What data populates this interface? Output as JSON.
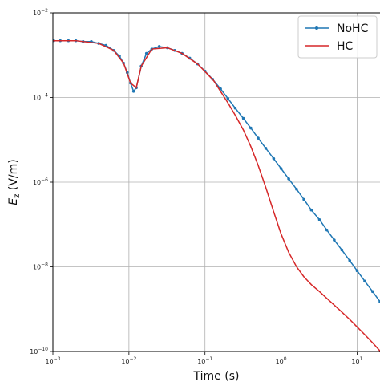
{
  "chart_data": {
    "type": "line",
    "title": "",
    "xlabel": "Time (s)",
    "ylabel": "E_z (V/m)",
    "xscale": "log",
    "yscale": "log",
    "xlim": [
      0.001,
      20
    ],
    "ylim": [
      1e-10,
      0.01
    ],
    "grid": true,
    "legend_position": "top-right",
    "x_ticks": [
      {
        "value": 0.001,
        "base": "10",
        "exp": "−3"
      },
      {
        "value": 0.01,
        "base": "10",
        "exp": "−2"
      },
      {
        "value": 0.1,
        "base": "10",
        "exp": "−1"
      },
      {
        "value": 1,
        "base": "10",
        "exp": "0"
      },
      {
        "value": 10,
        "base": "10",
        "exp": "1"
      }
    ],
    "y_ticks": [
      {
        "value": 1e-10,
        "base": "10",
        "exp": "−10"
      },
      {
        "value": 1e-08,
        "base": "10",
        "exp": "−8"
      },
      {
        "value": 1e-06,
        "base": "10",
        "exp": "−6"
      },
      {
        "value": 0.0001,
        "base": "10",
        "exp": "−4"
      },
      {
        "value": 0.01,
        "base": "10",
        "exp": "−2"
      }
    ],
    "series": [
      {
        "name": "NoHC",
        "color": "#1f77b4",
        "marker": "dot",
        "x": [
          0.001,
          0.00125,
          0.0016,
          0.002,
          0.0025,
          0.0032,
          0.004,
          0.005,
          0.0063,
          0.0075,
          0.0085,
          0.0095,
          0.0105,
          0.0115,
          0.0125,
          0.0145,
          0.017,
          0.02,
          0.025,
          0.032,
          0.04,
          0.05,
          0.063,
          0.08,
          0.1,
          0.126,
          0.16,
          0.2,
          0.25,
          0.32,
          0.4,
          0.5,
          0.63,
          0.8,
          1,
          1.26,
          1.6,
          2,
          2.5,
          3.2,
          4,
          5,
          6.3,
          8,
          10,
          12.6,
          16,
          20
        ],
        "y": [
          0.0022,
          0.0022,
          0.0022,
          0.0022,
          0.0021,
          0.0021,
          0.0019,
          0.0017,
          0.0013,
          0.00095,
          0.00065,
          0.00039,
          0.00022,
          0.00014,
          0.00017,
          0.00055,
          0.0011,
          0.0014,
          0.0016,
          0.0015,
          0.0013,
          0.0011,
          0.00085,
          0.00062,
          0.00042,
          0.00027,
          0.00016,
          9.5e-05,
          5.6e-05,
          3.2e-05,
          1.9e-05,
          1.1e-05,
          6.3e-06,
          3.6e-06,
          2.1e-06,
          1.2e-06,
          6.8e-07,
          3.9e-07,
          2.2e-07,
          1.3e-07,
          7.4e-08,
          4.3e-08,
          2.5e-08,
          1.4e-08,
          8.1e-09,
          4.6e-09,
          2.6e-09,
          1.5e-09
        ]
      },
      {
        "name": "HC",
        "color": "#d62728",
        "marker": "none",
        "x": [
          0.001,
          0.002,
          0.004,
          0.0063,
          0.0085,
          0.0105,
          0.0125,
          0.0145,
          0.02,
          0.032,
          0.05,
          0.08,
          0.1,
          0.13,
          0.16,
          0.2,
          0.25,
          0.32,
          0.4,
          0.5,
          0.63,
          0.8,
          1,
          1.26,
          1.6,
          2,
          2.5,
          3.2,
          4,
          5,
          6.3,
          8,
          10,
          12.6,
          16,
          20
        ],
        "y": [
          0.0022,
          0.0022,
          0.0019,
          0.0013,
          0.00065,
          0.00022,
          0.00017,
          0.00055,
          0.0014,
          0.0015,
          0.0011,
          0.00062,
          0.00041,
          0.00025,
          0.00014,
          7.5e-05,
          3.8e-05,
          1.7e-05,
          7e-06,
          2.5e-06,
          7.5e-07,
          2e-07,
          6e-08,
          2.2e-08,
          1e-08,
          5.8e-09,
          3.8e-09,
          2.6e-09,
          1.8e-09,
          1.25e-09,
          8.5e-10,
          5.7e-10,
          3.8e-10,
          2.5e-10,
          1.6e-10,
          1.03e-10
        ]
      }
    ]
  }
}
